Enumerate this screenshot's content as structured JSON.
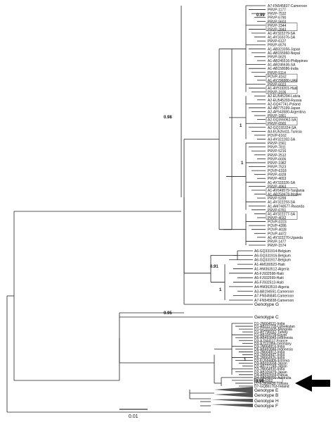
{
  "bootstrap": {
    "b98": "0.98",
    "b99": "0.99",
    "b1a": "1",
    "b1b": "1",
    "b091": "0.91",
    "b095": "0.95",
    "b1c": "1",
    "b099b": "0.99",
    "b1d": "1"
  },
  "scale_bar_label": "0.01",
  "groupA": [
    "A7-FN545837-Cameroon",
    "PRVP-1177",
    "PRVP-7532",
    "PRVP-6790",
    "PRVP-5603",
    "PRVP-2344",
    "PRVP-2843",
    "A1-AY322279-SA",
    "A1-AY333376-SA",
    "PRVP-6127",
    "PRVP-6576",
    "A1-AB323356-Japan",
    "A1-AB155960-Nepal",
    "PRVP-5625",
    "A1-AB245516-Philippines",
    "A1-AB246636-SA",
    "A1-AB158086-India",
    "PRVP-5114",
    "POVP-4162",
    "A1-AY296880-UAE",
    "PRVP-6023",
    "A1-AY519201-Haiti",
    "PRVP-3106",
    "A2-EU545294-Latvia",
    "A2-EU545293-Russia",
    "A2-GQ47741-Poland",
    "A2-AB775199-Japan",
    "A2-AF543580-Argentina",
    "PRVP-1861",
    "A2-GQ355062-SA",
    "PRVP-6565",
    "A2-GQ155324-SA",
    "A3-EU526411-Tunisia",
    "POVP-6162",
    "A3-AY322282-SA",
    "PRVP-1561",
    "PRVP-7811",
    "PRVP-5216",
    "PRVP-2512",
    "PRVP-6606",
    "PRVP-1982",
    "PRVP-7523",
    "POVP-6318",
    "PRVP-4328",
    "PRVP-4653",
    "A1-AY333326-SA",
    "PRVP-4963",
    "A1-AY649579-Tanzania",
    "A1-AB258478-Malawi",
    "PRVP-5299",
    "A1-AY322293-SA",
    "A1-AM748577-Rwanda",
    "PRVP-6761",
    "A1-AY322277-SA",
    "PRVP-4032",
    "POVP-0223",
    "POVP-4286",
    "POVP-4028",
    "POVP-4472",
    "A1-AY322270-Uganda",
    "PRVP-1477",
    "PRVP-1574"
  ],
  "groupB": [
    "A6-GQ331914-Belgium",
    "A6-GQ331916-Belgium",
    "A6-GQ331917-Belgium",
    "A1-AM180523-Haiti",
    "A1-HM363512-Algeria",
    "A5-FJ932598-Haiti",
    "A5-FJ932599-Haiti",
    "A5-FJ932513-Haiti",
    "A4-HM363510-Algeria",
    "A3-AB194551-Cameroon",
    "A7-FN545840-Cameroon",
    "A7-FN545838-Cameroon"
  ],
  "genotypeG": "Genotype G",
  "genotypeC": "Genotype C",
  "groupD": [
    "D1-JN664531-India",
    "D1-AB222705-Uzbekistan",
    "D1-GQ111605-Mongolia",
    "D1-AY796032-Turkey",
    "D1-AB104709-Egypt",
    "D6-AB493845-Indonesia",
    "D3-AJ344117-France",
    "D3-AJ131956-Germany",
    "D3-JN664914-India",
    "D6-AB493846-Indonesia",
    "D3-JN664912-India",
    "D3-JN664947-India",
    "D5-JN664925-India",
    "D2-EU594406-Estonia",
    "D3-AB033558-Japan",
    "D2-AB727249-Japan",
    "D3-JN664930-India",
    "D2-AB109479-Japan",
    "D4-AB033559-Papua",
    "D4-AB048701-Australia",
    "PRVP-6902",
    "D7-FJ904436-Tunisia",
    "D7-GQ861763-Ireland"
  ],
  "outgroups": [
    "Genotype E",
    "Genotype B",
    "Genotype H",
    "Genotype F"
  ],
  "icons": {
    "arrow": "arrow-left-icon"
  }
}
